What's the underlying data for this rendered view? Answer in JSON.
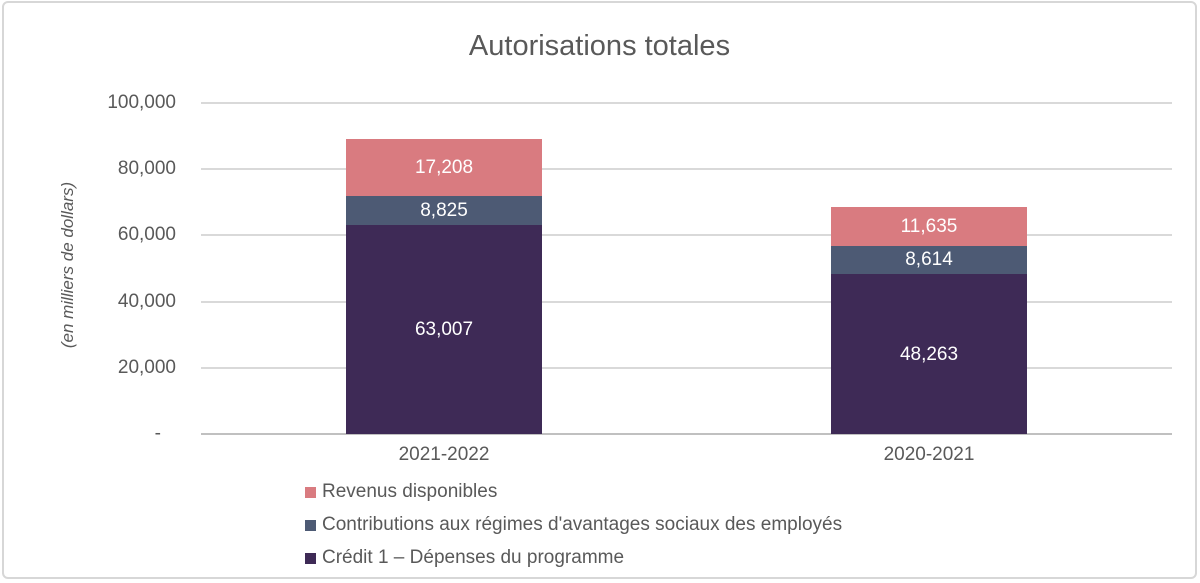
{
  "chart_data": {
    "type": "bar",
    "stacked": true,
    "title": "Autorisations totales",
    "ylabel": "(en milliers de dollars)",
    "xlabel": "",
    "categories": [
      "2021-2022",
      "2020-2021"
    ],
    "series": [
      {
        "name": "Crédit 1 – Dépenses du programme",
        "color": "#3E2A56",
        "values": [
          63007,
          48263
        ],
        "labels": [
          "63,007",
          "48,263"
        ]
      },
      {
        "name": "Contributions aux régimes d'avantages sociaux des employés",
        "color": "#4D5A74",
        "values": [
          8825,
          8614
        ],
        "labels": [
          "8,825",
          "8,614"
        ]
      },
      {
        "name": "Revenus disponibles",
        "color": "#D97B80",
        "values": [
          17208,
          11635
        ],
        "labels": [
          "17,208",
          "11,635"
        ]
      }
    ],
    "legend": [
      {
        "label": "Revenus disponibles",
        "color": "#D97B80"
      },
      {
        "label": "Contributions aux régimes d'avantages sociaux des employés",
        "color": "#4D5A74"
      },
      {
        "label": "Crédit 1 – Dépenses du programme",
        "color": "#3E2A56"
      }
    ],
    "y_ticks": [
      {
        "value": 100000,
        "label": "100,000"
      },
      {
        "value": 80000,
        "label": "80,000"
      },
      {
        "value": 60000,
        "label": "60,000"
      },
      {
        "value": 40000,
        "label": "40,000"
      },
      {
        "value": 20000,
        "label": "20,000"
      },
      {
        "value": 0,
        "label": "-"
      }
    ],
    "ylim": [
      0,
      100000
    ],
    "grid": true,
    "legend_position": "bottom-left",
    "value_label_color": "#FFFFFF",
    "text_color": "#595959",
    "gridline_color": "#D9D9D9",
    "axis_line_color": "#C0C0C0"
  }
}
